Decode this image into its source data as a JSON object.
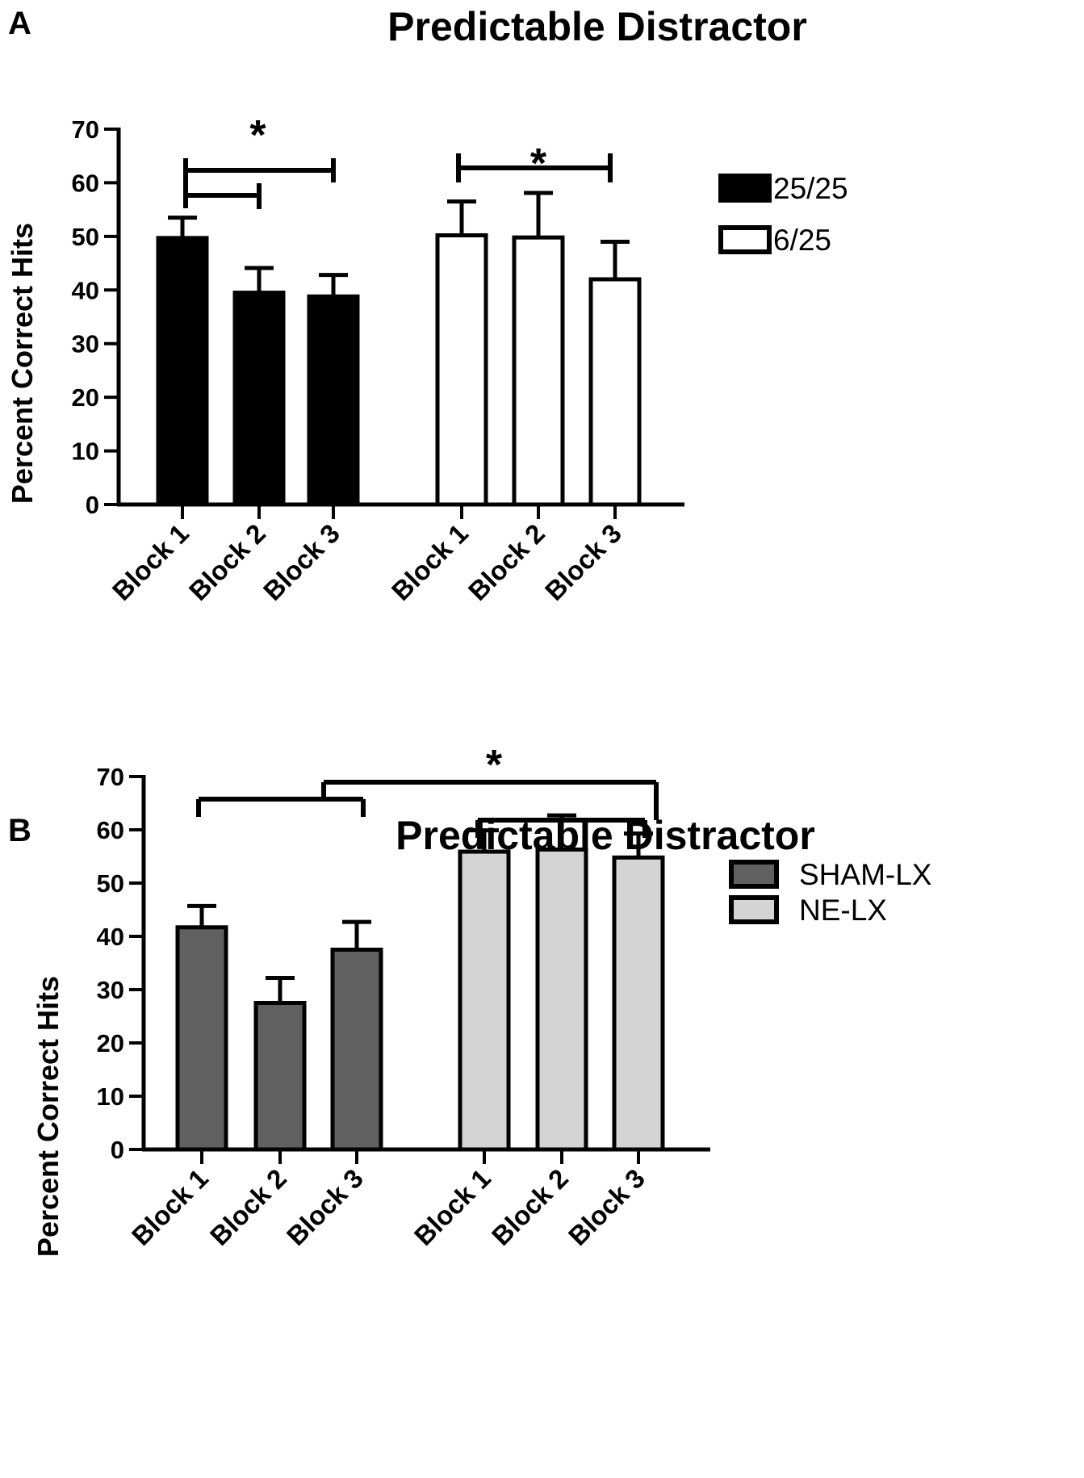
{
  "chart_data": [
    {
      "panel": "A",
      "type": "bar",
      "title": "Predictable Distractor",
      "ylabel": "Percent Correct Hits",
      "ylim": [
        0,
        70
      ],
      "yticks": [
        "0",
        "10",
        "20",
        "30",
        "40",
        "50",
        "60",
        "70"
      ],
      "categories": [
        "Block 1",
        "Block 2",
        "Block 3"
      ],
      "series": [
        {
          "name": "25/25",
          "color": "#000000",
          "values": [
            49.7,
            39.5,
            38.8
          ],
          "errors": [
            3.8,
            4.6,
            4.0
          ]
        },
        {
          "name": "6/25",
          "color": "#ffffff",
          "values": [
            50.2,
            49.8,
            42.0
          ],
          "errors": [
            6.3,
            8.3,
            7.0
          ]
        }
      ],
      "significance": [
        {
          "label": "*",
          "group": 0,
          "type": "double",
          "from": 0,
          "to": [
            1,
            2
          ]
        },
        {
          "label": "*",
          "group": 1,
          "type": "single",
          "from": 0,
          "to": [
            2
          ]
        }
      ],
      "legend": [
        "25/25",
        "6/25"
      ]
    },
    {
      "panel": "B",
      "type": "bar",
      "title": "Predictable Distractor",
      "ylabel": "Percent Correct Hits",
      "ylim": [
        0,
        70
      ],
      "yticks": [
        "0",
        "10",
        "20",
        "30",
        "40",
        "50",
        "60",
        "70"
      ],
      "categories": [
        "Block 1",
        "Block 2",
        "Block 3"
      ],
      "series": [
        {
          "name": "SHAM-LX",
          "color": "#606060",
          "values": [
            41.7,
            27.5,
            37.5
          ],
          "errors": [
            4.0,
            4.7,
            5.2
          ]
        },
        {
          "name": "NE-LX",
          "color": "#d4d4d4",
          "values": [
            55.9,
            56.3,
            54.8
          ],
          "errors": [
            4.0,
            6.4,
            4.5
          ]
        }
      ],
      "significance": [
        {
          "label": "*",
          "type": "group-bracket",
          "from": "SHAM-LX",
          "to": "NE-LX"
        }
      ],
      "legend": [
        "SHAM-LX",
        "NE-LX"
      ]
    }
  ]
}
